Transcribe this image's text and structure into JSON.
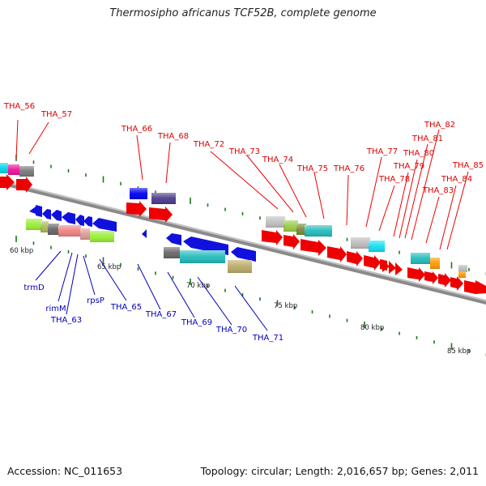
{
  "title": "Thermosipho africanus TCF52B, complete genome",
  "footer": {
    "accession": "Accession: NC_011653",
    "summary": "Topology: circular; Length: 2,016,657 bp; Genes: 2,011"
  },
  "colors": {
    "forward_label": "#dd0000",
    "reverse_label": "#0000bb",
    "backbone": "#7a7a7a",
    "tick": "#1b7a1b"
  },
  "scale_labels": [
    "60 kbp",
    "65 kbp",
    "70 kbp",
    "75 kbp",
    "80 kbp",
    "85 kbp"
  ],
  "forward_labels": [
    "THA_56",
    "THA_57",
    "THA_66",
    "THA_68",
    "THA_72",
    "THA_73",
    "THA_74",
    "THA_75",
    "THA_76",
    "THA_77",
    "THA_78",
    "THA_79",
    "THA_80",
    "THA_81",
    "THA_82",
    "THA_83",
    "THA_84",
    "THA_85"
  ],
  "reverse_labels": [
    "trmD",
    "rimM",
    "THA_63",
    "rpsP",
    "THA_65",
    "THA_67",
    "THA_69",
    "THA_70",
    "THA_71"
  ]
}
